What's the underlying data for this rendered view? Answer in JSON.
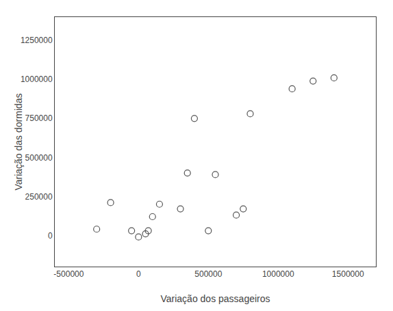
{
  "chart_data": {
    "type": "scatter",
    "x": [
      -300000,
      -200000,
      -50000,
      0,
      50000,
      70000,
      100000,
      150000,
      300000,
      350000,
      400000,
      500000,
      550000,
      700000,
      750000,
      800000,
      1100000,
      1250000,
      1400000
    ],
    "values": [
      40000,
      210000,
      30000,
      -10000,
      10000,
      30000,
      120000,
      200000,
      170000,
      400000,
      750000,
      30000,
      390000,
      130000,
      170000,
      780000,
      940000,
      990000,
      1010000
    ],
    "xlabel": "Variação dos passageiros",
    "ylabel": "Variação das dormidas",
    "xlim": [
      -600000,
      1700000
    ],
    "ylim": [
      -200000,
      1400000
    ],
    "xticks": [
      -500000,
      0,
      500000,
      1000000,
      1500000
    ],
    "yticks": [
      0,
      250000,
      500000,
      750000,
      1000000,
      1250000
    ],
    "color": "#555555",
    "marker": "circle-open",
    "grid": false
  }
}
